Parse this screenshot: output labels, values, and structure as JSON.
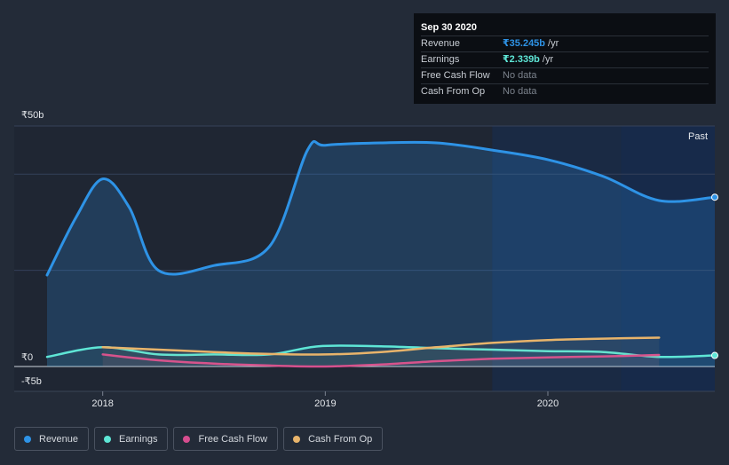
{
  "tooltip": {
    "date": "Sep 30 2020",
    "rows": [
      {
        "label": "Revenue",
        "value": "₹35.245b",
        "unit": "/yr",
        "color": "#2e93e6"
      },
      {
        "label": "Earnings",
        "value": "₹2.339b",
        "unit": "/yr",
        "color": "#5ee6d6"
      },
      {
        "label": "Free Cash Flow",
        "value": "No data",
        "unit": "",
        "color": ""
      },
      {
        "label": "Cash From Op",
        "value": "No data",
        "unit": "",
        "color": ""
      }
    ]
  },
  "past_label": "Past",
  "legend": [
    {
      "label": "Revenue",
      "color": "#2e93e6"
    },
    {
      "label": "Earnings",
      "color": "#5ee6d6"
    },
    {
      "label": "Free Cash Flow",
      "color": "#d64d8f"
    },
    {
      "label": "Cash From Op",
      "color": "#e8b46b"
    }
  ],
  "chart_data": {
    "type": "line",
    "y_tick_labels": [
      {
        "value": 50,
        "label": "₹50b"
      },
      {
        "value": 0,
        "label": "₹0"
      },
      {
        "value": -5,
        "label": "-₹5b"
      }
    ],
    "x_tick_labels": [
      {
        "value": 2018.0,
        "label": "2018"
      },
      {
        "value": 2019.0,
        "label": "2019"
      },
      {
        "value": 2020.0,
        "label": "2020"
      }
    ],
    "xlim": [
      2017.73,
      2020.75
    ],
    "ylim": [
      -5,
      50
    ],
    "past_region_start": 2019.75,
    "highlight_start": 2020.33,
    "series": [
      {
        "name": "Revenue",
        "color": "#2e93e6",
        "fill": true,
        "points": [
          [
            2017.75,
            19
          ],
          [
            2017.88,
            31
          ],
          [
            2018.0,
            39
          ],
          [
            2018.12,
            33
          ],
          [
            2018.25,
            20
          ],
          [
            2018.5,
            21
          ],
          [
            2018.75,
            25
          ],
          [
            2018.92,
            45
          ],
          [
            2019.0,
            46
          ],
          [
            2019.25,
            46.5
          ],
          [
            2019.5,
            46.5
          ],
          [
            2019.75,
            45
          ],
          [
            2020.0,
            43
          ],
          [
            2020.25,
            39.5
          ],
          [
            2020.5,
            34.5
          ],
          [
            2020.75,
            35.2
          ]
        ]
      },
      {
        "name": "Earnings",
        "color": "#5ee6d6",
        "fill": false,
        "points": [
          [
            2017.75,
            2
          ],
          [
            2018.0,
            4
          ],
          [
            2018.25,
            2.5
          ],
          [
            2018.5,
            2.5
          ],
          [
            2018.75,
            2.5
          ],
          [
            2018.97,
            4.2
          ],
          [
            2019.25,
            4.2
          ],
          [
            2019.5,
            3.8
          ],
          [
            2019.75,
            3.5
          ],
          [
            2020.0,
            3.2
          ],
          [
            2020.25,
            3
          ],
          [
            2020.5,
            2
          ],
          [
            2020.75,
            2.3
          ]
        ]
      },
      {
        "name": "Free Cash Flow",
        "color": "#d64d8f",
        "fill": false,
        "points": [
          [
            2018.0,
            2.5
          ],
          [
            2018.25,
            1.3
          ],
          [
            2018.5,
            0.6
          ],
          [
            2018.75,
            0.2
          ],
          [
            2019.0,
            0
          ],
          [
            2019.25,
            0.4
          ],
          [
            2019.5,
            1.1
          ],
          [
            2019.75,
            1.6
          ],
          [
            2020.0,
            1.9
          ],
          [
            2020.25,
            2.1
          ],
          [
            2020.5,
            2.4
          ]
        ]
      },
      {
        "name": "Cash From Op",
        "color": "#e8b46b",
        "fill": false,
        "points": [
          [
            2018.0,
            4
          ],
          [
            2018.25,
            3.5
          ],
          [
            2018.5,
            3
          ],
          [
            2018.75,
            2.6
          ],
          [
            2019.0,
            2.5
          ],
          [
            2019.25,
            3
          ],
          [
            2019.5,
            4
          ],
          [
            2019.75,
            4.9
          ],
          [
            2020.0,
            5.5
          ],
          [
            2020.25,
            5.8
          ],
          [
            2020.5,
            6
          ]
        ]
      }
    ]
  }
}
